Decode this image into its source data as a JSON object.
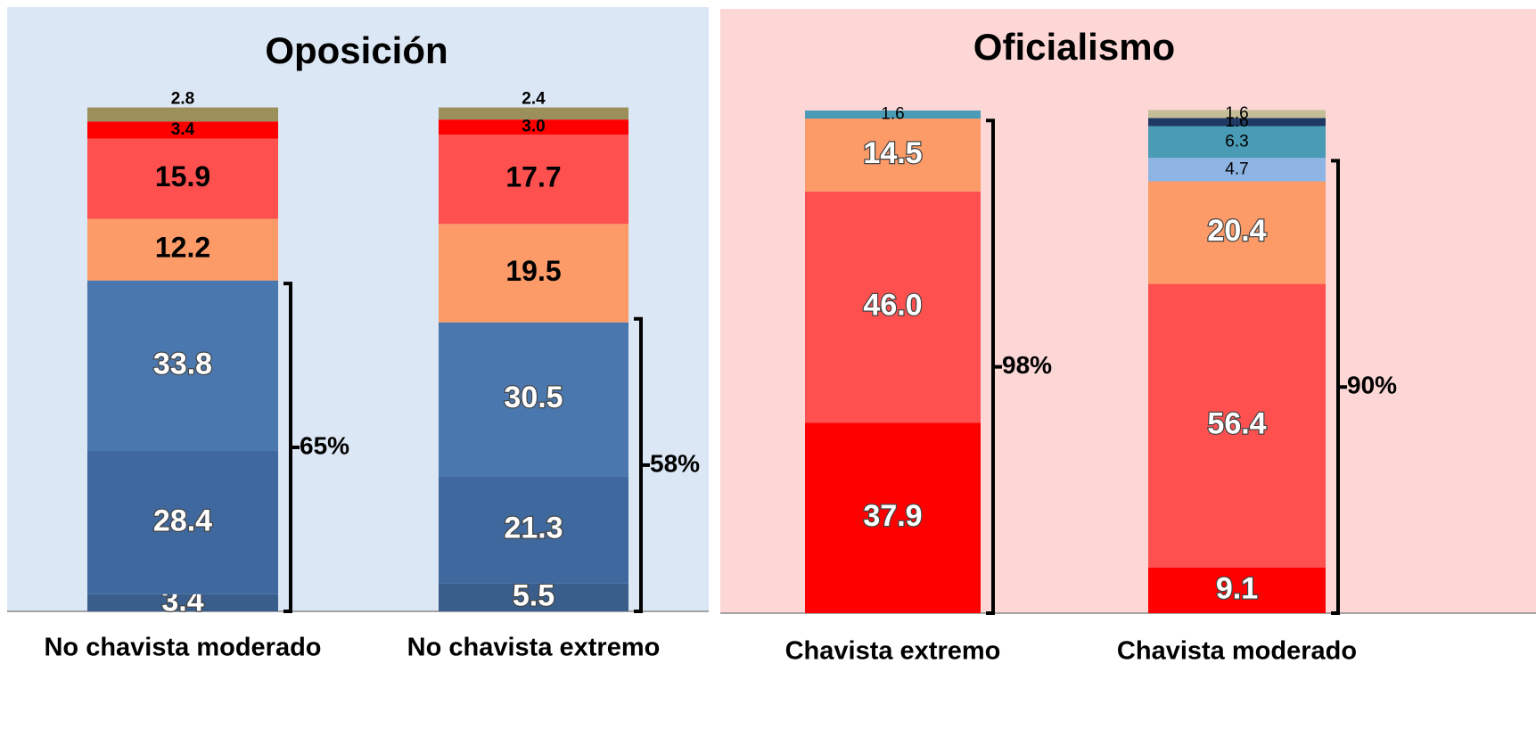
{
  "chart_data": [
    {
      "type": "stacked_bar",
      "title": "Oposición",
      "categories": [
        "No chavista moderado",
        "No chavista extremo"
      ],
      "stacks": [
        {
          "values": [
            3.4,
            28.4,
            33.8,
            12.2,
            15.9,
            3.4,
            2.8
          ],
          "value_labels": [
            "3.4",
            "28.4",
            "33.8",
            "12.2",
            "15.9",
            "3.4",
            "2.8"
          ],
          "colors": [
            "#3a5e8c",
            "#3f699e",
            "#4a78ae",
            "#fc9a68",
            "#ff5050",
            "#ff0000",
            "#9b8f5c"
          ],
          "label_colors": [
            "#ffffff",
            "#ffffff",
            "#ffffff",
            "#000000",
            "#000000",
            "#000000",
            "#000000"
          ],
          "bracket": {
            "value": 65,
            "label": "65%"
          }
        },
        {
          "values": [
            5.5,
            21.3,
            30.5,
            19.5,
            17.7,
            3.0,
            2.4
          ],
          "value_labels": [
            "5.5",
            "21.3",
            "30.5",
            "19.5",
            "17.7",
            "3.0",
            "2.4"
          ],
          "colors": [
            "#3a5e8c",
            "#3f699e",
            "#4a78ae",
            "#fc9a68",
            "#ff5050",
            "#ff0000",
            "#9b8f5c"
          ],
          "label_colors": [
            "#ffffff",
            "#ffffff",
            "#ffffff",
            "#000000",
            "#000000",
            "#000000",
            "#000000"
          ],
          "bracket": {
            "value": 58,
            "label": "58%"
          }
        }
      ]
    },
    {
      "type": "stacked_bar",
      "title": "Oficialismo",
      "categories": [
        "Chavista extremo",
        "Chavista moderado"
      ],
      "stacks": [
        {
          "values": [
            37.9,
            46.0,
            14.5,
            1.6
          ],
          "value_labels": [
            "37.9",
            "46.0",
            "14.5",
            "1.6"
          ],
          "colors": [
            "#ff0000",
            "#ff5050",
            "#fc9a68",
            "#4a9bb5"
          ],
          "label_colors": [
            "#ffffff",
            "#ffffff",
            "#ffffff",
            "#000000"
          ],
          "bracket": {
            "value": 98,
            "label": "98%"
          }
        },
        {
          "values": [
            9.1,
            56.4,
            20.4,
            4.7,
            6.3,
            1.6,
            1.6
          ],
          "value_labels": [
            "9.1",
            "56.4",
            "20.4",
            "4.7",
            "6.3",
            "1.6",
            "1.6"
          ],
          "colors": [
            "#ff0000",
            "#ff5050",
            "#fc9a68",
            "#8eb4e3",
            "#4a9bb5",
            "#1f3864",
            "#c4bd97"
          ],
          "label_colors": [
            "#ffffff",
            "#ffffff",
            "#ffffff",
            "#000000",
            "#000000",
            "#000000",
            "#000000"
          ],
          "bracket": {
            "value": 90,
            "label": "90%"
          }
        }
      ]
    }
  ]
}
